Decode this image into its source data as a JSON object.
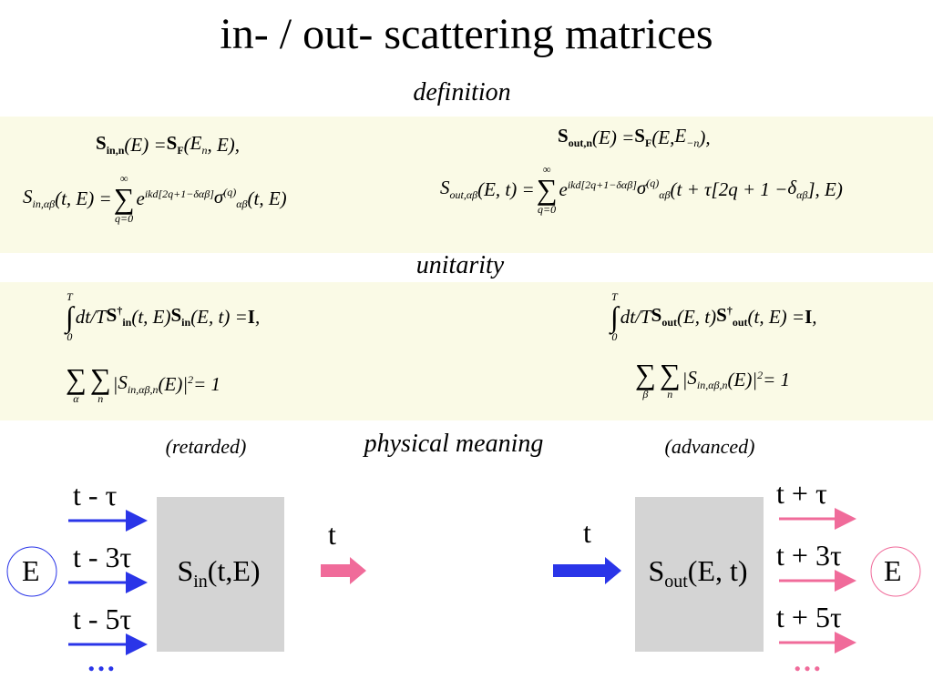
{
  "title": "in- / out- scattering matrices",
  "definition": {
    "heading": "definition",
    "left": [
      [
        {
          "b": "S",
          "sub": "in,n",
          "bold": true
        },
        "(E) = ",
        {
          "b": "S",
          "sub": "F",
          "bold": true
        },
        "(",
        {
          "b": "E",
          "sub": "n"
        },
        ", E),"
      ],
      [
        {
          "b": "S",
          "sub": "in,αβ"
        },
        "(t, E) = ",
        {
          "b": "∑",
          "sub": "q=0",
          "sup": "∞"
        },
        {
          "b": "e",
          "sup": "ikd[2q+1−δαβ]"
        },
        {
          "b": "σ",
          "sub": "αβ",
          "sup": "(q)"
        },
        "(t, E)"
      ]
    ],
    "right": [
      [
        {
          "b": "S",
          "sub": "out,n",
          "bold": true
        },
        "(E) = ",
        {
          "b": "S",
          "sub": "F",
          "bold": true
        },
        "(E, ",
        {
          "b": "E",
          "sub": "−n"
        },
        "),"
      ],
      [
        {
          "b": "S",
          "sub": "out,αβ"
        },
        "(E, t) = ",
        {
          "b": "∑",
          "sub": "q=0",
          "sup": "∞"
        },
        {
          "b": "e",
          "sup": "ikd[2q+1−δαβ]"
        },
        {
          "b": "σ",
          "sub": "αβ",
          "sup": "(q)"
        },
        "(t + τ[2q + 1 − ",
        {
          "b": "δ",
          "sub": "αβ"
        },
        "], E)"
      ]
    ]
  },
  "unitarity": {
    "heading": "unitarity",
    "left": [
      [
        {
          "b": "∫",
          "sub": "0",
          "sup": "T"
        },
        "dt/T ",
        {
          "b": "S",
          "sub": "in",
          "sup": "†",
          "bold": true
        },
        "(t, E)",
        {
          "b": "S",
          "sub": "in",
          "bold": true
        },
        "(E, t) = ",
        {
          "b": "I",
          "bold": true
        },
        " ,"
      ],
      [
        {
          "b": "∑",
          "sub": "α"
        },
        {
          "b": "∑",
          "sub": "n"
        },
        "|",
        {
          "b": "S",
          "sub": "in,αβ,n"
        },
        "(E)",
        {
          "b": "|",
          "sup": "2"
        },
        " = 1"
      ]
    ],
    "right": [
      [
        {
          "b": "∫",
          "sub": "0",
          "sup": "T"
        },
        "dt/T ",
        {
          "b": "S",
          "sub": "out",
          "bold": true
        },
        "(E, t)",
        {
          "b": "S",
          "sub": "out",
          "sup": "†",
          "bold": true
        },
        "(t, E) = ",
        {
          "b": "I",
          "bold": true
        },
        " ,"
      ],
      [
        {
          "b": "∑",
          "sub": "β"
        },
        {
          "b": "∑",
          "sub": "n"
        },
        "|",
        {
          "b": "S",
          "sub": "in,αβ,n"
        },
        "(E)",
        {
          "b": "|",
          "sup": "2"
        },
        " = 1"
      ]
    ]
  },
  "physical_meaning": {
    "heading": "physical meaning",
    "retarded": "(retarded)",
    "advanced": "(advanced)"
  },
  "left_diagram": {
    "inputs": [
      "t - τ",
      "t - 3τ",
      "t - 5τ",
      "…"
    ],
    "energy": "E",
    "box": [
      {
        "b": "S",
        "sub": "in"
      },
      "(t,E)"
    ],
    "output": "t"
  },
  "right_diagram": {
    "input": "t",
    "box": [
      {
        "b": "S",
        "sub": "out"
      },
      "(E, t)"
    ],
    "outputs": [
      "t + τ",
      "t + 3τ",
      "t + 5τ",
      "…"
    ],
    "energy": "E"
  }
}
